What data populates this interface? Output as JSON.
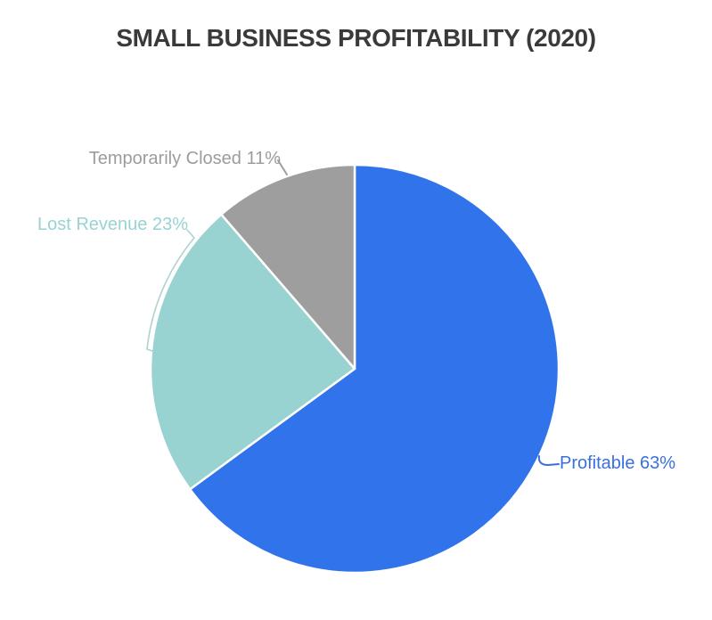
{
  "chart_data": {
    "type": "pie",
    "title": "SMALL BUSINESS PROFITABILITY (2020)",
    "values_unit": "percent",
    "categories": [
      "Profitable",
      "Lost Revenue",
      "Temporarily Closed"
    ],
    "values": [
      63,
      23,
      11
    ],
    "slices": [
      {
        "label": "Profitable",
        "value": 63,
        "callout": "Profitable 63%",
        "color": "#3173EB",
        "label_color": "#3A70DD",
        "leader_color": "#3A70DD"
      },
      {
        "label": "Lost Revenue",
        "value": 23,
        "callout": "Lost Revenue 23%",
        "color": "#99D3D1",
        "label_color": "#99D3D1",
        "leader_color": "#AFD2D0"
      },
      {
        "label": "Temporarily Closed",
        "value": 11,
        "callout": "Temporarily Closed 11%",
        "color": "#9E9E9E",
        "label_color": "#9C9C9C",
        "leader_color": "#9E9E9E"
      }
    ],
    "start_angle_deg": 0,
    "direction": "clockwise",
    "legend": "none",
    "label_style": "external callouts with leader lines"
  }
}
